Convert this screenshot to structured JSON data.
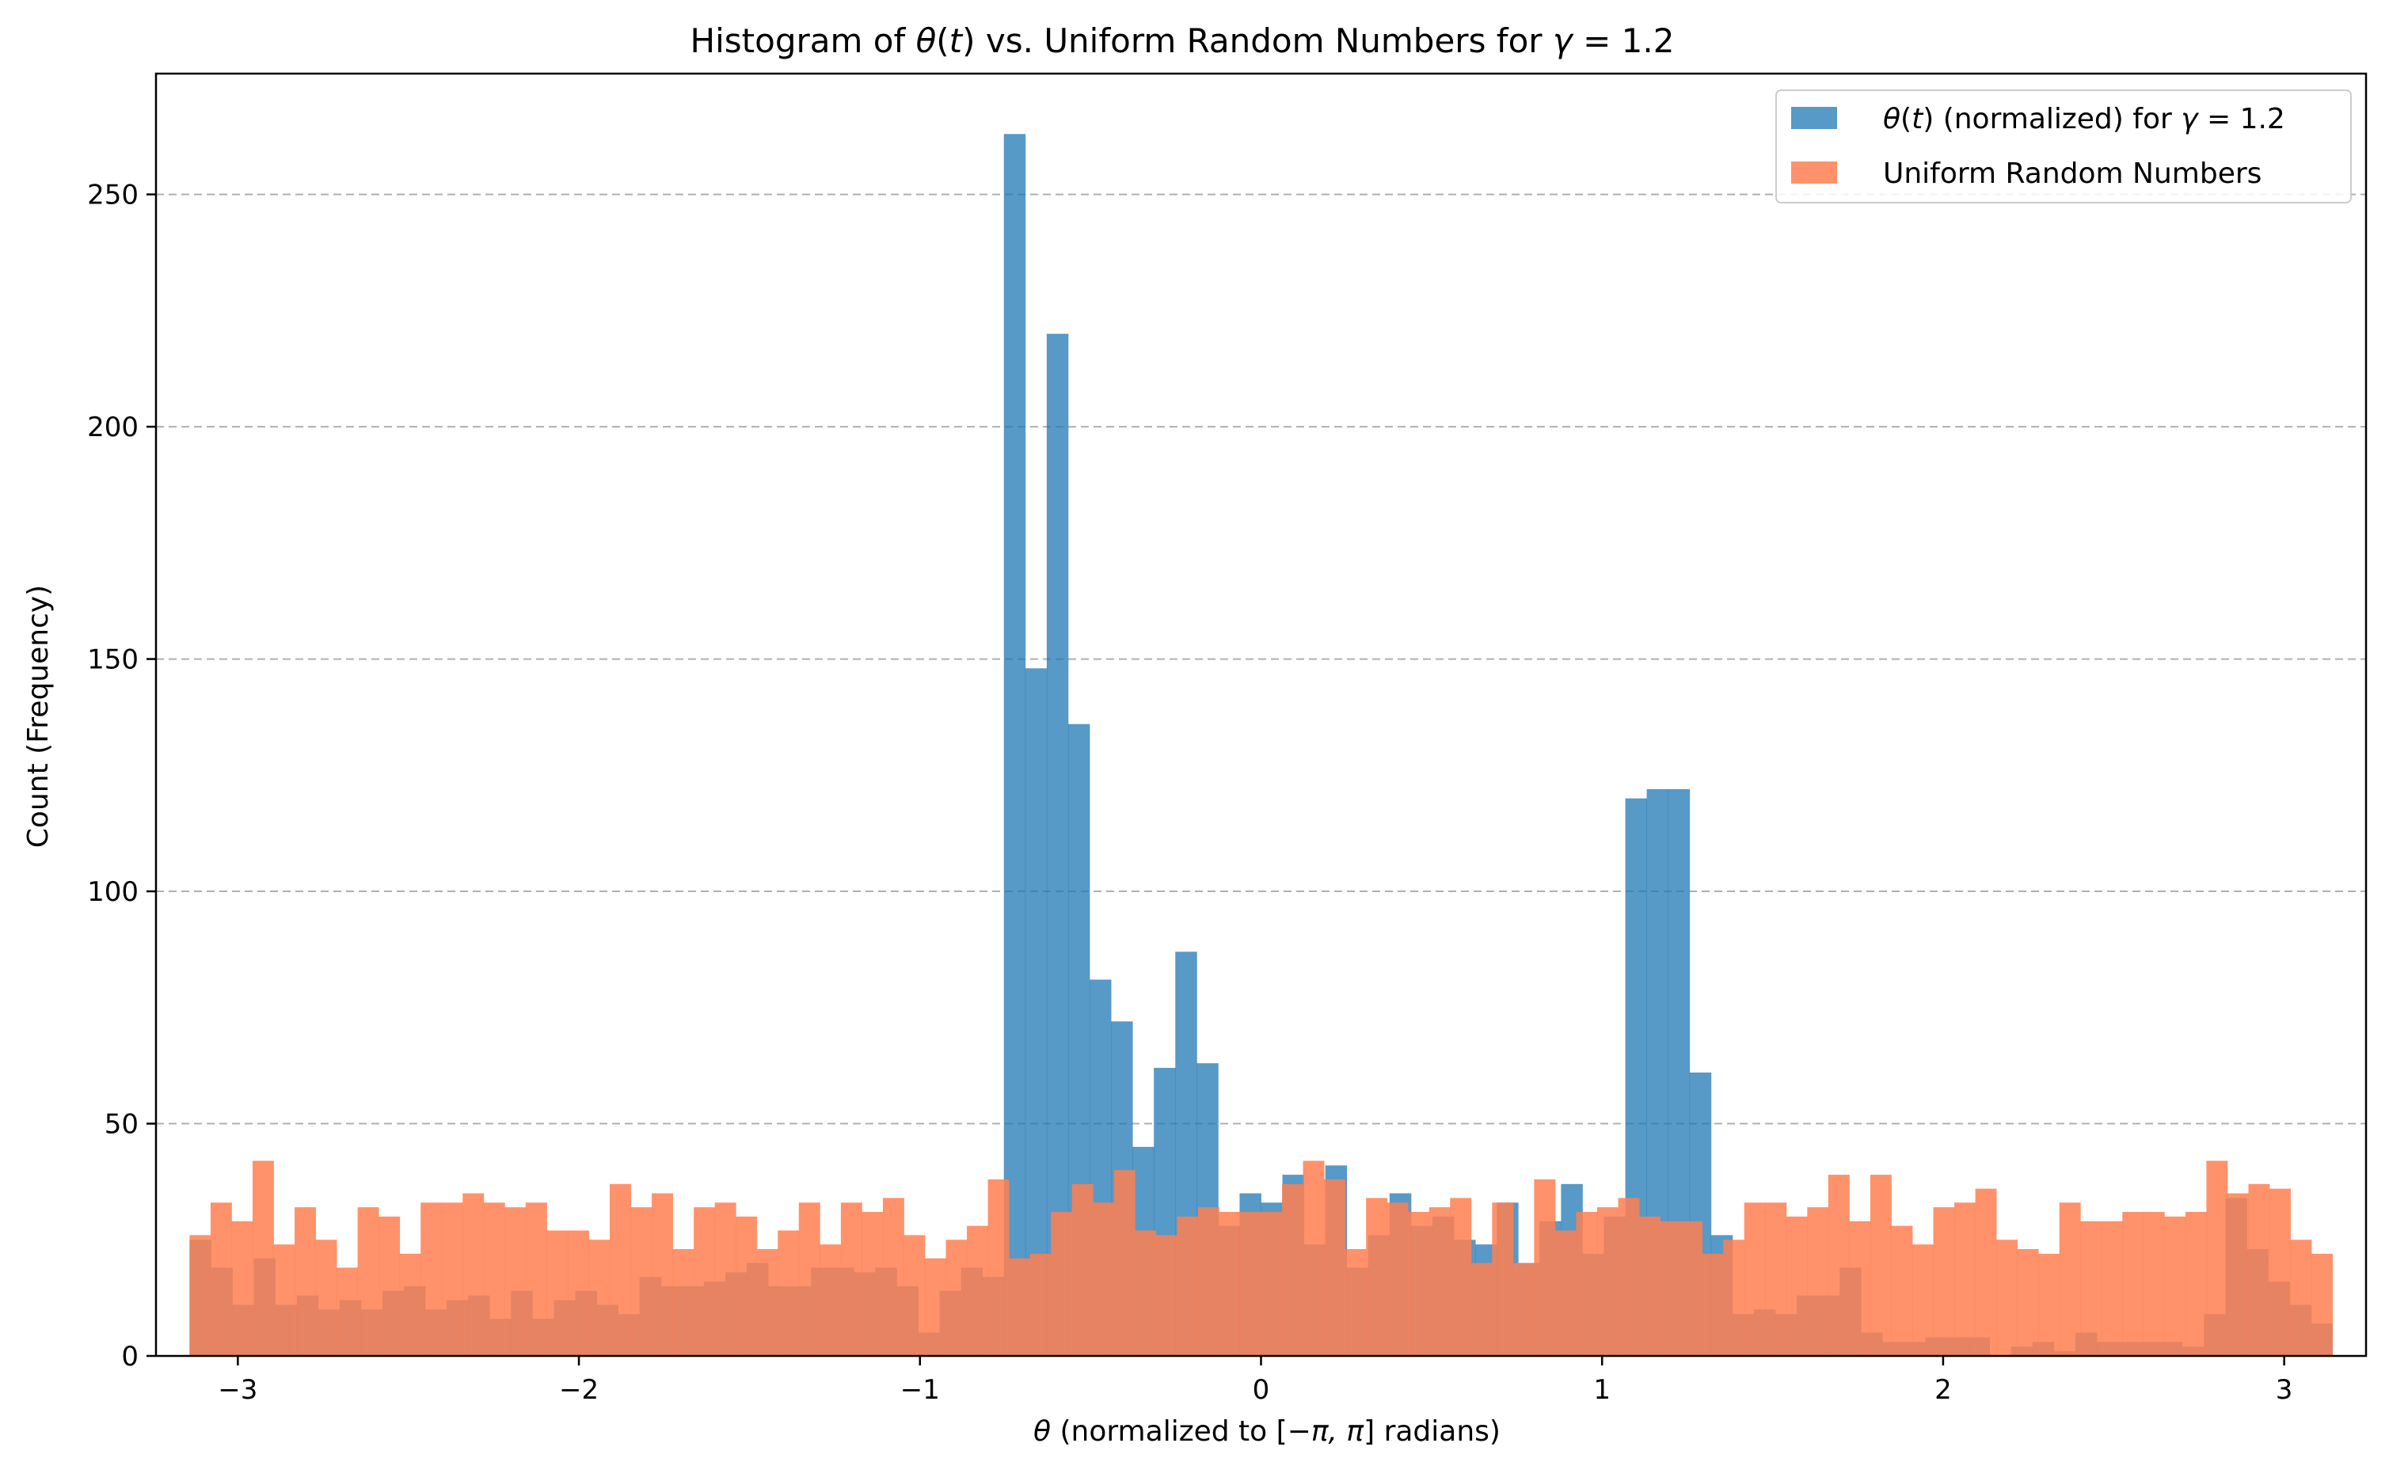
{
  "chart_data": {
    "type": "bar",
    "title_parts": [
      "Histogram of ",
      "θ",
      "(",
      "t",
      ") vs. Uniform Random Numbers for ",
      "γ",
      " = 1.2"
    ],
    "xlabel_parts": [
      "θ",
      " (normalized to [",
      "−π, π",
      "] radians)"
    ],
    "ylabel": "Count (Frequency)",
    "xlim": [
      -3.24,
      3.24
    ],
    "ylim": [
      0,
      276
    ],
    "xticks": [
      -3,
      -2,
      -1,
      0,
      1,
      2,
      3
    ],
    "xtick_labels": [
      "−3",
      "−2",
      "−1",
      "0",
      "1",
      "2",
      "3"
    ],
    "yticks": [
      0,
      50,
      100,
      150,
      200,
      250
    ],
    "ytick_labels": [
      "0",
      "50",
      "100",
      "150",
      "200",
      "250"
    ],
    "grid": "y-dashed",
    "legend_position": "top-right",
    "bin_range": [
      -3.14159,
      3.14159
    ],
    "series": [
      {
        "name_parts": [
          "θ",
          "(",
          "t",
          ") (normalized) for ",
          "γ",
          " = 1.2"
        ],
        "color": "#1f77b4",
        "alpha": 0.75,
        "values": [
          25,
          19,
          11,
          21,
          11,
          13,
          10,
          12,
          10,
          14,
          15,
          10,
          12,
          13,
          8,
          14,
          8,
          12,
          14,
          11,
          9,
          17,
          15,
          15,
          16,
          18,
          20,
          15,
          15,
          19,
          19,
          18,
          19,
          15,
          5,
          14,
          19,
          17,
          263,
          148,
          220,
          136,
          81,
          72,
          45,
          62,
          87,
          63,
          28,
          35,
          33,
          39,
          24,
          41,
          19,
          26,
          35,
          28,
          30,
          25,
          24,
          33,
          20,
          29,
          37,
          22,
          30,
          120,
          122,
          122,
          61,
          26,
          9,
          10,
          9,
          13,
          13,
          19,
          5,
          3,
          3,
          4,
          4,
          4,
          0,
          2,
          3,
          1,
          5,
          3,
          3,
          3,
          3,
          2,
          9,
          34,
          23,
          16,
          11,
          7
        ]
      },
      {
        "name": "Uniform Random Numbers",
        "color": "#ff7f50",
        "alpha": 0.85,
        "values": [
          26,
          33,
          29,
          42,
          24,
          32,
          25,
          19,
          32,
          30,
          22,
          33,
          33,
          35,
          33,
          32,
          33,
          27,
          27,
          25,
          37,
          32,
          35,
          23,
          32,
          33,
          30,
          23,
          27,
          33,
          24,
          33,
          31,
          34,
          26,
          21,
          25,
          28,
          38,
          21,
          22,
          31,
          37,
          33,
          40,
          27,
          26,
          30,
          32,
          31,
          31,
          31,
          37,
          42,
          38,
          23,
          34,
          33,
          31,
          32,
          34,
          20,
          33,
          20,
          38,
          27,
          31,
          32,
          34,
          30,
          29,
          29,
          22,
          25,
          33,
          33,
          30,
          32,
          39,
          29,
          39,
          28,
          24,
          32,
          33,
          36,
          25,
          23,
          22,
          33,
          29,
          29,
          31,
          31,
          30,
          31,
          42,
          35,
          37,
          36,
          25,
          22
        ]
      }
    ]
  }
}
